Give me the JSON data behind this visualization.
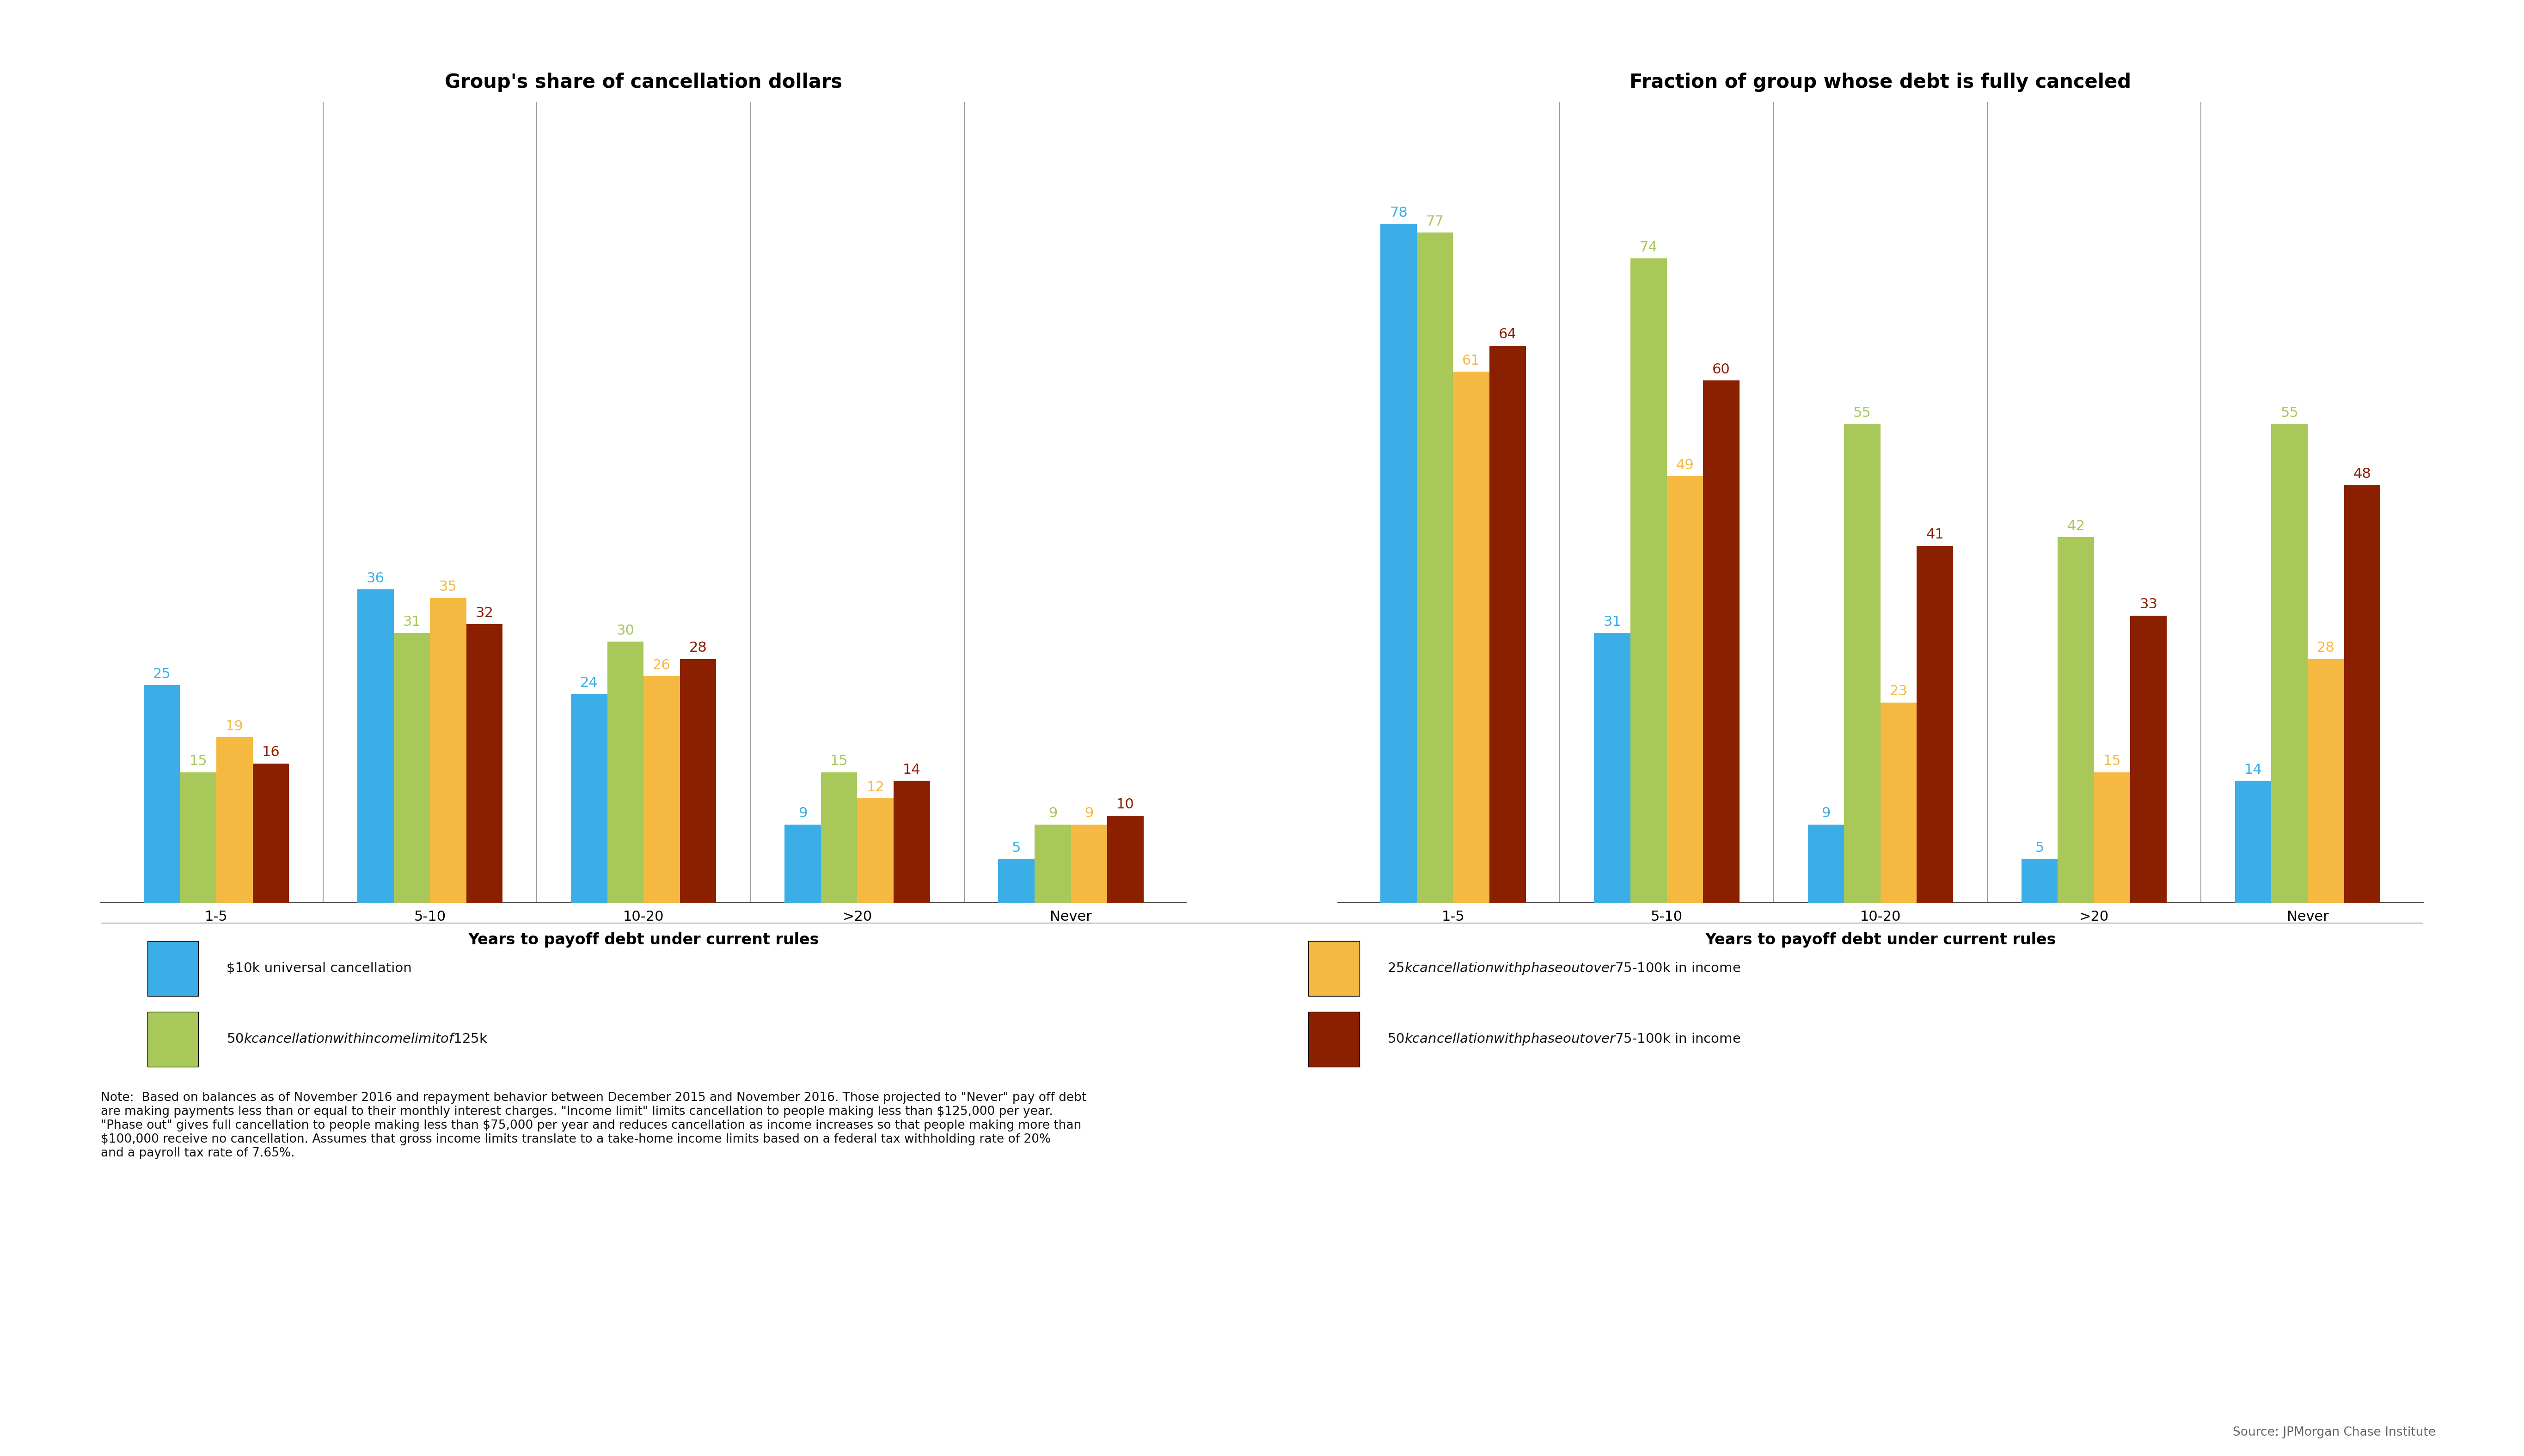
{
  "left_title": "Group's share of cancellation dollars",
  "right_title": "Fraction of group whose debt is fully canceled",
  "xlabel": "Years to payoff debt under current rules",
  "categories": [
    "1-5",
    "5-10",
    "10-20",
    ">20",
    "Never"
  ],
  "colors": {
    "blue": "#3BAEE8",
    "green": "#A8C85A",
    "orange": "#F5B942",
    "red": "#8B2000"
  },
  "legend_labels": [
    "$10k universal cancellation",
    "$50k cancellation with income limit of $125k",
    "$25k cancellation with phase out over $75-100k in income",
    "$50k cancellation with phase out over $75-100k in income"
  ],
  "left_data": {
    "blue": [
      25,
      36,
      24,
      9,
      5
    ],
    "green": [
      15,
      31,
      30,
      15,
      9
    ],
    "orange": [
      19,
      35,
      26,
      12,
      9
    ],
    "red": [
      16,
      32,
      28,
      14,
      10
    ]
  },
  "right_data": {
    "blue": [
      78,
      31,
      9,
      5,
      14
    ],
    "green": [
      77,
      74,
      55,
      42,
      55
    ],
    "orange": [
      61,
      49,
      23,
      15,
      28
    ],
    "red": [
      64,
      60,
      41,
      33,
      48
    ]
  },
  "note_text": "Note:  Based on balances as of November 2016 and repayment behavior between December 2015 and November 2016. Those projected to \"Never\" pay off debt\nare making payments less than or equal to their monthly interest charges. \"Income limit\" limits cancellation to people making less than $125,000 per year.\n\"Phase out\" gives full cancellation to people making less than $75,000 per year and reduces cancellation as income increases so that people making more than\n$100,000 receive no cancellation. Assumes that gross income limits translate to a take-home income limits based on a federal tax withholding rate of 20%\nand a payroll tax rate of 7.65%.",
  "source_text": "Source: JPMorgan Chase Institute",
  "background_color": "#FFFFFF",
  "label_fontsize": 22,
  "title_fontsize": 30,
  "xlabel_fontsize": 24,
  "tick_fontsize": 22,
  "legend_fontsize": 21,
  "note_fontsize": 19
}
